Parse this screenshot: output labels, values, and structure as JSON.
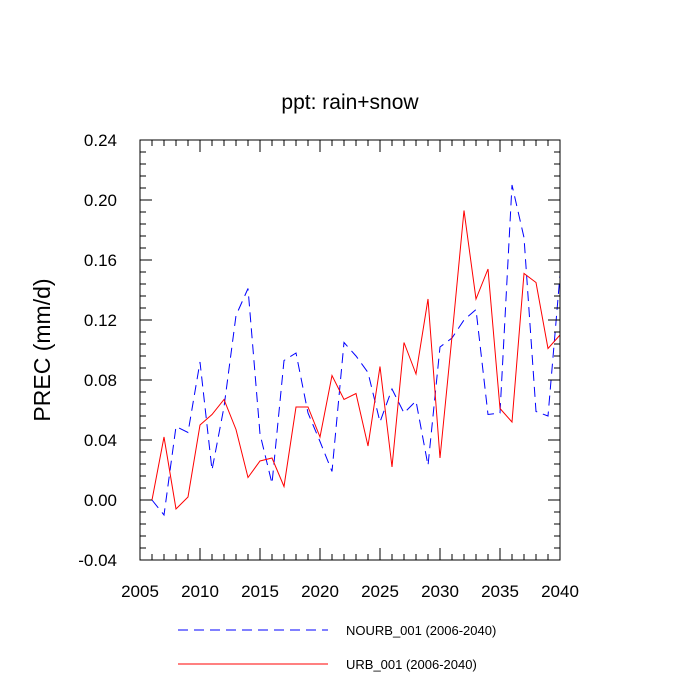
{
  "chart_data": {
    "type": "line",
    "title": "ppt: rain+snow",
    "xlabel": "",
    "ylabel": "PREC  (mm/d)",
    "xlim": [
      2005,
      2040
    ],
    "ylim": [
      -0.04,
      0.24
    ],
    "xticks": [
      2005,
      2010,
      2015,
      2020,
      2025,
      2030,
      2035,
      2040
    ],
    "xtick_labels": [
      "2005",
      "2010",
      "2015",
      "2020",
      "2025",
      "2030",
      "2035",
      "2040"
    ],
    "yticks": [
      -0.04,
      0.0,
      0.04,
      0.08,
      0.12,
      0.16,
      0.2,
      0.24
    ],
    "ytick_labels": [
      "-0.04",
      "0.00",
      "0.04",
      "0.08",
      "0.12",
      "0.16",
      "0.20",
      "0.24"
    ],
    "grid": false,
    "legend_position": "bottom",
    "x": [
      2006,
      2007,
      2008,
      2009,
      2010,
      2011,
      2012,
      2013,
      2014,
      2015,
      2016,
      2017,
      2018,
      2019,
      2020,
      2021,
      2022,
      2023,
      2024,
      2025,
      2026,
      2027,
      2028,
      2029,
      2030,
      2031,
      2032,
      2033,
      2034,
      2035,
      2036,
      2037,
      2038,
      2039,
      2040
    ],
    "series": [
      {
        "name": "NOURB_001 (2006-2040)",
        "color": "#0000ff",
        "style": "dashed",
        "values": [
          0.0,
          -0.01,
          0.049,
          0.045,
          0.092,
          0.02,
          0.062,
          0.123,
          0.141,
          0.044,
          0.011,
          0.093,
          0.098,
          0.058,
          0.039,
          0.019,
          0.105,
          0.096,
          0.085,
          0.052,
          0.074,
          0.058,
          0.066,
          0.023,
          0.102,
          0.108,
          0.12,
          0.127,
          0.057,
          0.058,
          0.21,
          0.175,
          0.059,
          0.056,
          0.15
        ]
      },
      {
        "name": "URB_001 (2006-2040)",
        "color": "#ff0000",
        "style": "solid",
        "values": [
          0.0,
          0.042,
          -0.006,
          0.002,
          0.05,
          0.057,
          0.067,
          0.047,
          0.015,
          0.026,
          0.028,
          0.009,
          0.062,
          0.062,
          0.042,
          0.083,
          0.067,
          0.071,
          0.036,
          0.089,
          0.022,
          0.105,
          0.084,
          0.134,
          0.028,
          0.109,
          0.193,
          0.134,
          0.154,
          0.061,
          0.052,
          0.151,
          0.145,
          0.101,
          0.11
        ]
      }
    ]
  }
}
